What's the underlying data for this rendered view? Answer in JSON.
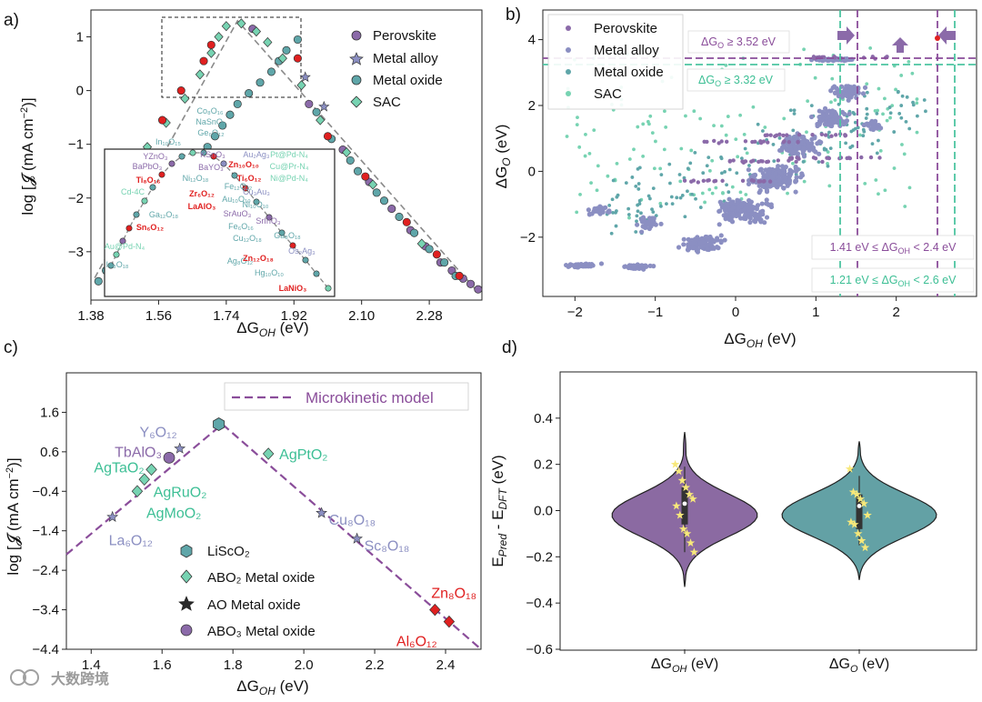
{
  "colors": {
    "perovskite": "#8b6aa9",
    "alloy": "#8b8fc2",
    "oxide": "#5fa6a9",
    "sac": "#77d3b2",
    "red": "#e02020",
    "dash_purple": "#8a4d9a",
    "dash_teal": "#4cc5a0",
    "violin_purple": "#8b6aa2",
    "violin_teal": "#63a1a5",
    "star_yellow": "#f7e87a",
    "microkinetic": "#8a4d9a"
  },
  "chart_data": [
    {
      "id": "a",
      "panel_label": "a)",
      "type": "scatter",
      "xlabel": "ΔG_OH (eV)",
      "ylabel": "log [𝓙 (mA cm⁻²)]",
      "x_ticks": [
        "1.38",
        "1.56",
        "1.74",
        "1.92",
        "2.10",
        "2.28"
      ],
      "y_ticks": [
        "1",
        "0",
        "−1",
        "−2",
        "−3"
      ],
      "xlim": [
        1.38,
        2.42
      ],
      "ylim": [
        -3.9,
        1.5
      ],
      "grid": false,
      "legend_position": "top-right",
      "legend": [
        "Perovskite",
        "Metal alloy",
        "Metal oxide",
        "SAC"
      ],
      "model_peak": {
        "x": 1.77,
        "y": 1.3
      },
      "series": [
        {
          "name": "Perovskite",
          "marker": "circle",
          "x": [
            1.81,
            1.96,
            2.05,
            2.12,
            2.18,
            2.23,
            2.27,
            2.31,
            2.34,
            2.37,
            2.39,
            2.41
          ],
          "y": [
            1.15,
            -0.25,
            -1.1,
            -1.7,
            -2.2,
            -2.6,
            -2.9,
            -3.2,
            -3.35,
            -3.5,
            -3.6,
            -3.7
          ]
        },
        {
          "name": "Metal alloy",
          "marker": "star",
          "x": [
            1.55,
            1.95,
            2.0
          ],
          "y": [
            -2.25,
            0.25,
            -0.3
          ]
        },
        {
          "name": "Metal oxide",
          "marker": "circle",
          "x": [
            1.4,
            1.42,
            1.46,
            1.49,
            1.52,
            1.55,
            1.58,
            1.6,
            1.63,
            1.66,
            1.69,
            1.71,
            1.73,
            1.75,
            1.77,
            1.8,
            1.83,
            1.86,
            1.88,
            1.9,
            1.93,
            1.98,
            2.02,
            2.07,
            2.09,
            2.14,
            2.16,
            2.2,
            2.24,
            2.28,
            2.32,
            2.35
          ],
          "y": [
            -3.55,
            -3.35,
            -3.05,
            -2.8,
            -2.55,
            -2.3,
            -2.05,
            -1.8,
            -1.55,
            -1.3,
            -1.05,
            -0.85,
            -0.65,
            -0.45,
            -0.25,
            -0.05,
            0.15,
            0.35,
            0.55,
            0.75,
            0.95,
            -0.4,
            -0.9,
            -1.3,
            -1.5,
            -1.9,
            -2.05,
            -2.35,
            -2.65,
            -2.95,
            -3.2,
            -3.45
          ]
        },
        {
          "name": "SAC",
          "marker": "diamond",
          "x": [
            1.44,
            1.53,
            1.58,
            1.63,
            1.67,
            1.7,
            1.72,
            1.74,
            1.78,
            1.82,
            1.85,
            1.89,
            1.94,
            1.99,
            2.06,
            2.13,
            2.26
          ],
          "y": [
            -1.75,
            -1.05,
            -0.6,
            -0.15,
            0.3,
            0.7,
            1.0,
            1.2,
            1.25,
            1.1,
            0.9,
            0.6,
            0.1,
            -0.55,
            -1.15,
            -1.75,
            -2.85
          ]
        },
        {
          "name": "highlight",
          "marker": "circle",
          "x": [
            1.47,
            1.57,
            1.62,
            1.68,
            1.7,
            1.93,
            2.01,
            2.11,
            2.22,
            2.3,
            2.36
          ],
          "y": [
            -1.4,
            -0.55,
            0.0,
            0.55,
            0.85,
            0.6,
            -0.85,
            -1.6,
            -2.45,
            -3.05,
            -3.45
          ]
        }
      ],
      "inset_labels": [
        {
          "text": "Co₈O₁₆",
          "color": "oxide"
        },
        {
          "text": "NaSnO₃",
          "color": "oxide"
        },
        {
          "text": "Ge₆O₁₂",
          "color": "oxide"
        },
        {
          "text": "In₁₀O₁₅",
          "color": "oxide"
        },
        {
          "text": "YZnO₃",
          "color": "perovskite"
        },
        {
          "text": "BaPbO₃",
          "color": "perovskite"
        },
        {
          "text": "Ti₈O₁₆",
          "color": "red"
        },
        {
          "text": "Cd-4C",
          "color": "sac"
        },
        {
          "text": "Ga₁₂O₁₈",
          "color": "oxide"
        },
        {
          "text": "Sn₆O₁₂",
          "color": "red"
        },
        {
          "text": "Au@Pd-N₄",
          "color": "sac"
        },
        {
          "text": "In₈O₁₈",
          "color": "oxide"
        },
        {
          "text": "KSnO₃",
          "color": "perovskite"
        },
        {
          "text": "BaYO₃",
          "color": "perovskite"
        },
        {
          "text": "Ni₁₂O₁₈",
          "color": "oxide"
        },
        {
          "text": "Zr₆O₁₂",
          "color": "red"
        },
        {
          "text": "LaAlO₃",
          "color": "red"
        },
        {
          "text": "Au₂Ag₃",
          "color": "alloy"
        },
        {
          "text": "Pt@Pd-N₄",
          "color": "sac"
        },
        {
          "text": "Zn₁₀O₁₀",
          "color": "red"
        },
        {
          "text": "Cu@Pr-N₄",
          "color": "sac"
        },
        {
          "text": "Ni@Pd-N₄",
          "color": "sac"
        },
        {
          "text": "Ti₆O₁₂",
          "color": "red"
        },
        {
          "text": "Fe₁₂O₁₂",
          "color": "oxide"
        },
        {
          "text": "Cu₃Au₃",
          "color": "alloy"
        },
        {
          "text": "Au₁₀O₁₀",
          "color": "oxide"
        },
        {
          "text": "Ni₁₀O₁₀",
          "color": "oxide"
        },
        {
          "text": "SrAuO₃",
          "color": "perovskite"
        },
        {
          "text": "SrInO₃",
          "color": "perovskite"
        },
        {
          "text": "Fe₆O₁₆",
          "color": "oxide"
        },
        {
          "text": "Cu₁₂O₁₈",
          "color": "oxide"
        },
        {
          "text": "Ga₈O₁₈",
          "color": "oxide"
        },
        {
          "text": "Os₂Ag₃",
          "color": "alloy"
        },
        {
          "text": "Ag₈O₁₂",
          "color": "oxide"
        },
        {
          "text": "Zn₁₂O₁₈",
          "color": "red"
        },
        {
          "text": "Hg₁₀O₁₀",
          "color": "oxide"
        },
        {
          "text": "LaNiO₃",
          "color": "red"
        }
      ]
    },
    {
      "id": "b",
      "panel_label": "b)",
      "type": "scatter",
      "xlabel": "ΔG_OH (eV)",
      "ylabel": "ΔG_O (eV)",
      "x_ticks": [
        "−2",
        "−1",
        "0",
        "1",
        "2"
      ],
      "y_ticks": [
        "4",
        "2",
        "0",
        "−2"
      ],
      "xlim": [
        -2.4,
        3.0
      ],
      "ylim": [
        -3.8,
        4.9
      ],
      "grid": false,
      "legend_position": "top-left",
      "legend": [
        "Perovskite",
        "Metal alloy",
        "Metal oxide",
        "SAC"
      ],
      "thresholds": [
        {
          "text": "ΔG_O ≥ 3.52 eV",
          "value": 3.52,
          "axis": "y",
          "color": "dash_purple"
        },
        {
          "text": "ΔG_O ≥ 3.32 eV",
          "value": 3.32,
          "axis": "y",
          "color": "dash_teal"
        },
        {
          "text": "1.41 eV ≤ ΔG_OH < 2.4 eV",
          "values": [
            1.41,
            2.4
          ],
          "axis": "x",
          "color": "dash_purple"
        },
        {
          "text": "1.21 eV ≤ ΔG_OH < 2.6 eV",
          "values": [
            1.21,
            2.6
          ],
          "axis": "x",
          "color": "dash_teal"
        }
      ],
      "series_summary": [
        {
          "name": "Metal alloy",
          "approx_x_range": [
            -2.1,
            2.1
          ],
          "approx_y_range": [
            -3.2,
            3.6
          ]
        },
        {
          "name": "Metal oxide",
          "approx_x_range": [
            -2.2,
            2.6
          ],
          "approx_y_range": [
            -1.4,
            4.5
          ]
        },
        {
          "name": "SAC",
          "approx_x_range": [
            -2.2,
            2.4
          ],
          "approx_y_range": [
            -1.2,
            4.4
          ]
        },
        {
          "name": "Perovskite",
          "approx_x_range": [
            -1.0,
            2.4
          ],
          "approx_y_range": [
            -0.5,
            3.7
          ]
        }
      ]
    },
    {
      "id": "c",
      "panel_label": "c)",
      "type": "scatter",
      "xlabel": "ΔG_OH (eV)",
      "ylabel": "log [𝓙 (mA cm⁻²)]",
      "x_ticks": [
        "1.4",
        "1.6",
        "1.8",
        "2.0",
        "2.2",
        "2.4"
      ],
      "y_ticks": [
        "1.6",
        "0.6",
        "−0.4",
        "−1.4",
        "−2.4",
        "−3.4",
        "−4.4"
      ],
      "xlim": [
        1.33,
        2.5
      ],
      "ylim": [
        -4.4,
        2.6
      ],
      "grid": false,
      "legend_position": "bottom-left",
      "legend": [
        "LiScO₂",
        "ABO₂ Metal oxide",
        "AO  Metal oxide",
        "ABO₃ Metal oxide",
        "Microkinetic model"
      ],
      "model": {
        "name": "Microkinetic model",
        "x": [
          1.33,
          1.77,
          2.5
        ],
        "y": [
          -2.0,
          1.3,
          -4.4
        ]
      },
      "points": [
        {
          "label": "LiScO₂",
          "x": 1.76,
          "y": 1.3,
          "marker": "hexagon",
          "color": "oxide"
        },
        {
          "label": "AgPtO₂",
          "x": 1.9,
          "y": 0.55,
          "marker": "diamond",
          "color": "sac"
        },
        {
          "label": "Y₆O₁₂",
          "x": 1.65,
          "y": 0.68,
          "marker": "star",
          "color": "alloy"
        },
        {
          "label": "TbAlO₃",
          "x": 1.62,
          "y": 0.45,
          "marker": "circle",
          "color": "perovskite"
        },
        {
          "label": "AgTaO₂",
          "x": 1.57,
          "y": 0.15,
          "marker": "diamond",
          "color": "sac"
        },
        {
          "label": "AgRuO₂",
          "x": 1.55,
          "y": -0.1,
          "marker": "diamond",
          "color": "sac"
        },
        {
          "label": "AgMoO₂",
          "x": 1.53,
          "y": -0.4,
          "marker": "diamond",
          "color": "sac"
        },
        {
          "label": "La₆O₁₂",
          "x": 1.46,
          "y": -1.05,
          "marker": "star",
          "color": "alloy"
        },
        {
          "label": "Cu₈O₁₈",
          "x": 2.05,
          "y": -0.95,
          "marker": "star",
          "color": "alloy"
        },
        {
          "label": "Sc₈O₁₈",
          "x": 2.15,
          "y": -1.6,
          "marker": "star",
          "color": "alloy"
        },
        {
          "label": "Zn₈O₁₈",
          "x": 2.37,
          "y": -3.4,
          "marker": "diamond",
          "color": "red"
        },
        {
          "label": "Al₆O₁₂",
          "x": 2.41,
          "y": -3.7,
          "marker": "diamond",
          "color": "red"
        }
      ]
    },
    {
      "id": "d",
      "panel_label": "d)",
      "type": "violin",
      "xlabel": "",
      "ylabel": "E_Pred − E_DFT (eV)",
      "categories": [
        "ΔG_OH (eV)",
        "ΔG_O (eV)"
      ],
      "y_ticks": [
        "0.4",
        "0.2",
        "0.0",
        "−0.2",
        "−0.4",
        "−0.6"
      ],
      "ylim": [
        -0.6,
        0.6
      ],
      "grid": false,
      "series": [
        {
          "name": "ΔG_OH (eV)",
          "min": -0.33,
          "max": 0.34,
          "q1": -0.06,
          "q3": 0.1,
          "median": 0.03,
          "points": [
            0.2,
            0.17,
            0.13,
            0.1,
            0.07,
            0.05,
            0.02,
            -0.02,
            -0.08,
            -0.1,
            -0.14,
            -0.18
          ]
        },
        {
          "name": "ΔG_O (eV)",
          "min": -0.3,
          "max": 0.3,
          "q1": -0.08,
          "q3": 0.07,
          "median": 0.02,
          "points": [
            0.18,
            0.08,
            0.07,
            0.05,
            0.03,
            -0.02,
            -0.05,
            -0.06,
            -0.1,
            -0.13,
            -0.16
          ]
        }
      ]
    }
  ],
  "watermark": "大数跨境"
}
